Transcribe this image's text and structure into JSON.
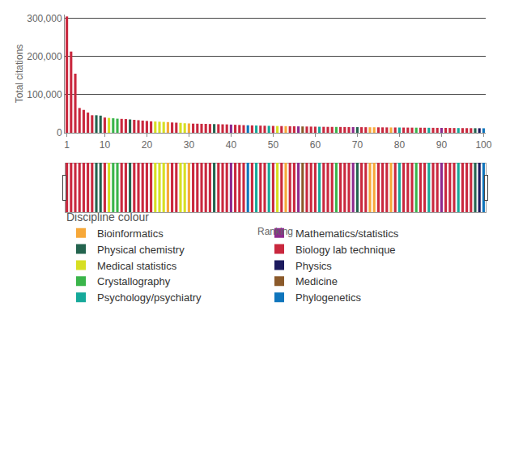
{
  "chart_data": {
    "type": "bar",
    "xlabel": "Ranking",
    "ylabel": "Total citations",
    "legend_title": "Discipline colour",
    "xlim": [
      0.5,
      100.5
    ],
    "xticks": [
      1,
      10,
      20,
      30,
      40,
      50,
      60,
      70,
      80,
      90,
      100
    ],
    "ylim": [
      0,
      310000
    ],
    "yticks": [
      0,
      {
        "value": 100000,
        "label": "100,000"
      },
      {
        "value": 200000,
        "label": "200,000"
      },
      {
        "value": 300000,
        "label": "300,000"
      }
    ],
    "grid": true,
    "legend": "bottom",
    "series": [
      {
        "name": "Bioinformatics",
        "color": "#f7a839",
        "x": [
          25,
          30,
          53,
          73,
          74,
          78
        ],
        "values": [
          28000,
          24500,
          17400,
          14500,
          14400,
          14000
        ]
      },
      {
        "name": "Mathematics/statistics",
        "color": "#8e2a8e",
        "x": [
          40,
          56,
          69,
          90
        ],
        "values": [
          21500,
          16800,
          14900,
          12800
        ]
      },
      {
        "name": "Physical chemistry",
        "color": "#24644f",
        "x": [
          8,
          9,
          16,
          36,
          70,
          98
        ],
        "values": [
          46000,
          45000,
          35000,
          22800,
          14800,
          12000
        ]
      },
      {
        "name": "Biology lab technique",
        "color": "#c9283e",
        "x": [
          1,
          2,
          3,
          4,
          5,
          6,
          7,
          10,
          14,
          15,
          17,
          18,
          19,
          20,
          21,
          26,
          27,
          31,
          32,
          33,
          34,
          35,
          37,
          38,
          39,
          41,
          42,
          43,
          45,
          47,
          48,
          50,
          52,
          54,
          55,
          58,
          59,
          60,
          62,
          63,
          64,
          66,
          67,
          68,
          71,
          72,
          75,
          76,
          77,
          79,
          81,
          82,
          83,
          85,
          86,
          88,
          89,
          91,
          92,
          93,
          95,
          96,
          97
        ],
        "values": [
          305000,
          213000,
          155000,
          65000,
          60000,
          53000,
          46000,
          40000,
          36500,
          36000,
          34000,
          33000,
          32000,
          31000,
          30000,
          27000,
          26500,
          24000,
          23800,
          23500,
          23300,
          23000,
          22500,
          22200,
          22000,
          21000,
          20500,
          20000,
          19400,
          18800,
          18500,
          18000,
          17600,
          17200,
          17000,
          16400,
          16200,
          16000,
          15600,
          15500,
          15400,
          15200,
          15100,
          15000,
          14700,
          14600,
          14300,
          14200,
          14100,
          13900,
          13700,
          13600,
          13500,
          13300,
          13200,
          13000,
          12900,
          12700,
          12600,
          12500,
          12300,
          12200,
          12100
        ]
      },
      {
        "name": "Medical statistics",
        "color": "#d7df23",
        "x": [
          11,
          22,
          23,
          24,
          28,
          29,
          51
        ],
        "values": [
          39000,
          29500,
          29000,
          28500,
          26000,
          25000,
          17800
        ]
      },
      {
        "name": "Physics",
        "color": "#1c1a5e",
        "x": [
          99
        ],
        "values": [
          11900
        ]
      },
      {
        "name": "Crystallography",
        "color": "#3ab54a",
        "x": [
          12,
          13,
          65,
          84
        ],
        "values": [
          38000,
          37000,
          15300,
          13400
        ]
      },
      {
        "name": "Medicine",
        "color": "#8b5a2b",
        "x": [
          57
        ],
        "values": [
          16600
        ]
      },
      {
        "name": "Psychology/psychiatry",
        "color": "#16a99a",
        "x": [
          46,
          49,
          61,
          80,
          87,
          94
        ],
        "values": [
          19100,
          18200,
          15800,
          13800,
          13100,
          12400
        ]
      },
      {
        "name": "Phylogenetics",
        "color": "#0f75bc",
        "x": [
          44,
          100
        ],
        "values": [
          19700,
          11800
        ]
      }
    ]
  }
}
